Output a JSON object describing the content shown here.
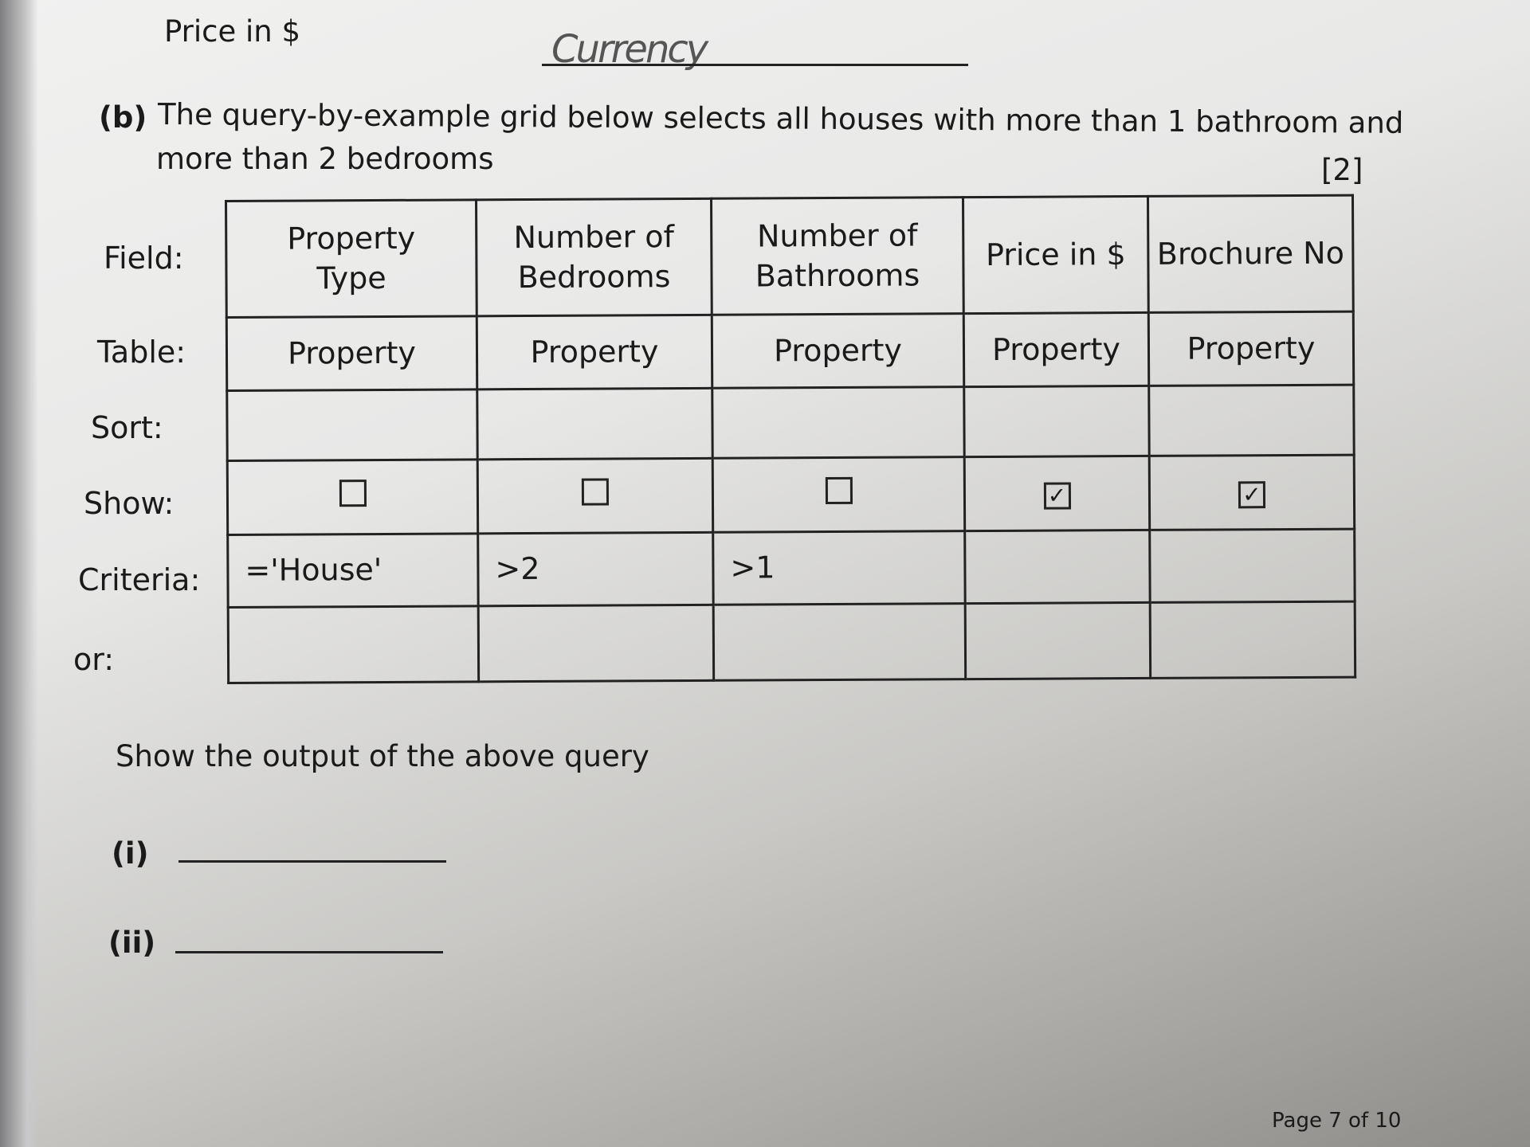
{
  "top_label": "Price in $",
  "handwritten_answer": "Currency",
  "question": {
    "label": "(b)",
    "line1": "The query-by-example grid below selects all houses with more than 1 bathroom and",
    "line2": "more than 2 bedrooms",
    "marks": "[2]"
  },
  "grid": {
    "row_labels": [
      "Field:",
      "Table:",
      "Sort:",
      "Show:",
      "Criteria:",
      "or:"
    ],
    "fields": [
      [
        "Property",
        "Type"
      ],
      [
        "Number of",
        "Bedrooms"
      ],
      [
        "Number of",
        "Bathrooms"
      ],
      [
        "Price in $",
        ""
      ],
      [
        "Brochure No",
        ""
      ]
    ],
    "tables": [
      "Property",
      "Property",
      "Property",
      "Property",
      "Property"
    ],
    "sort": [
      "",
      "",
      "",
      "",
      ""
    ],
    "show": [
      false,
      false,
      false,
      true,
      true
    ],
    "criteria": [
      "='House'",
      ">2",
      ">1",
      "",
      ""
    ],
    "or": [
      "",
      "",
      "",
      "",
      ""
    ]
  },
  "prompt": "Show the output of the above query",
  "answers": [
    {
      "label": "(i)",
      "value": ""
    },
    {
      "label": "(ii)",
      "value": ""
    }
  ],
  "footer": "Page 7 of 10"
}
